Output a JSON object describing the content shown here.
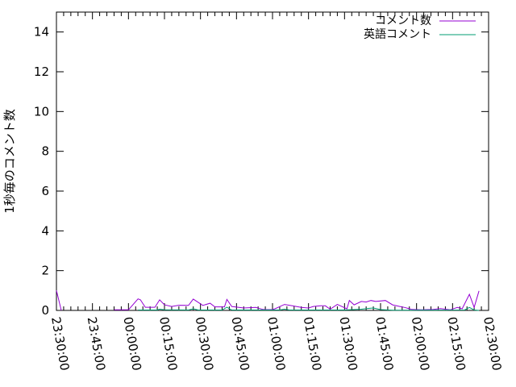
{
  "chart_data": {
    "type": "line",
    "title": "",
    "xlabel": "",
    "ylabel": "1秒毎のコメント数",
    "xlim": [
      "23:30:00",
      "02:30:00"
    ],
    "ylim": [
      0,
      15
    ],
    "x_ticks": [
      "23:30:00",
      "23:45:00",
      "00:00:00",
      "00:15:00",
      "00:30:00",
      "00:45:00",
      "01:00:00",
      "01:15:00",
      "01:30:00",
      "01:45:00",
      "02:00:00",
      "02:15:00",
      "02:30:00"
    ],
    "y_ticks": [
      "0",
      "2",
      "4",
      "6",
      "8",
      "10",
      "12",
      "14"
    ],
    "y_tick_values": [
      0,
      2,
      4,
      6,
      8,
      10,
      12,
      14
    ],
    "grid": false,
    "legend_position": "top-right",
    "series": [
      {
        "name": "コメント数",
        "color": "#9400d3",
        "points": [
          [
            "23:30",
            1.0
          ],
          [
            "23:32",
            0
          ],
          null,
          [
            "23:54",
            0.03
          ],
          [
            "00:00",
            0.03
          ],
          [
            "00:04",
            0.58
          ],
          [
            "00:05",
            0.53
          ],
          [
            "00:07",
            0.16
          ],
          [
            "00:11",
            0.16
          ],
          [
            "00:13",
            0.53
          ],
          [
            "00:15",
            0.28
          ],
          [
            "00:18",
            0.2
          ],
          [
            "00:21",
            0.26
          ],
          [
            "00:25",
            0.25
          ],
          [
            "00:27",
            0.57
          ],
          [
            "00:28",
            0.49
          ],
          [
            "00:31",
            0.25
          ],
          [
            "00:34",
            0.36
          ],
          [
            "00:36",
            0.18
          ],
          [
            "00:40",
            0.18
          ],
          [
            "00:41",
            0.55
          ],
          [
            "00:43",
            0.2
          ],
          [
            "00:48",
            0.12
          ],
          [
            "00:53",
            0.15
          ],
          [
            "00:56",
            0.05
          ],
          [
            "00:57",
            0.04
          ],
          [
            "01:00",
            0.04
          ],
          [
            "01:01",
            0.08
          ],
          [
            "01:05",
            0.3
          ],
          [
            "01:08",
            0.24
          ],
          [
            "01:12",
            0.15
          ],
          [
            "01:15",
            0.12
          ],
          [
            "01:17",
            0.2
          ],
          [
            "01:20",
            0.23
          ],
          [
            "01:22",
            0.23
          ],
          [
            "01:24",
            0.06
          ],
          [
            "01:27",
            0.3
          ],
          [
            "01:31",
            0.08
          ],
          [
            "01:32",
            0.5
          ],
          [
            "01:34",
            0.28
          ],
          [
            "01:37",
            0.45
          ],
          [
            "01:39",
            0.42
          ],
          [
            "01:41",
            0.5
          ],
          [
            "01:43",
            0.45
          ],
          [
            "01:47",
            0.5
          ],
          [
            "01:50",
            0.28
          ],
          [
            "01:53",
            0.2
          ],
          [
            "01:55",
            0.15
          ],
          [
            "01:58",
            0.05
          ],
          [
            "02:02",
            0.03
          ],
          [
            "02:07",
            0.05
          ],
          [
            "02:10",
            0.09
          ],
          [
            "02:14",
            0.03
          ],
          [
            "02:17",
            0.15
          ],
          [
            "02:19",
            0.08
          ],
          [
            "02:22",
            0.81
          ],
          [
            "02:24",
            0.15
          ],
          [
            "02:26",
            0.98
          ]
        ]
      },
      {
        "name": "英語コメント",
        "color": "#009e73",
        "points": [
          [
            "00:04",
            0.02
          ],
          [
            "00:12",
            0.02
          ],
          [
            "00:13",
            0.06
          ],
          [
            "00:15",
            0.03
          ],
          [
            "00:25",
            0.02
          ],
          [
            "00:27",
            0.08
          ],
          [
            "00:29",
            0.02
          ],
          [
            "00:39",
            0.02
          ],
          [
            "00:41",
            0.16
          ],
          [
            "00:43",
            0.02
          ],
          [
            "01:03",
            0.02
          ],
          [
            "01:05",
            0.06
          ],
          [
            "01:07",
            0.02
          ],
          [
            "01:30",
            0.02
          ],
          [
            "01:37",
            0.06
          ],
          [
            "01:40",
            0.1
          ],
          [
            "01:42",
            0.12
          ],
          [
            "01:45",
            0.04
          ],
          [
            "01:50",
            0.01
          ],
          [
            "02:20",
            0.02
          ],
          [
            "02:22",
            0.15
          ],
          [
            "02:24",
            0.02
          ],
          [
            "02:26",
            0.0
          ]
        ]
      }
    ]
  }
}
